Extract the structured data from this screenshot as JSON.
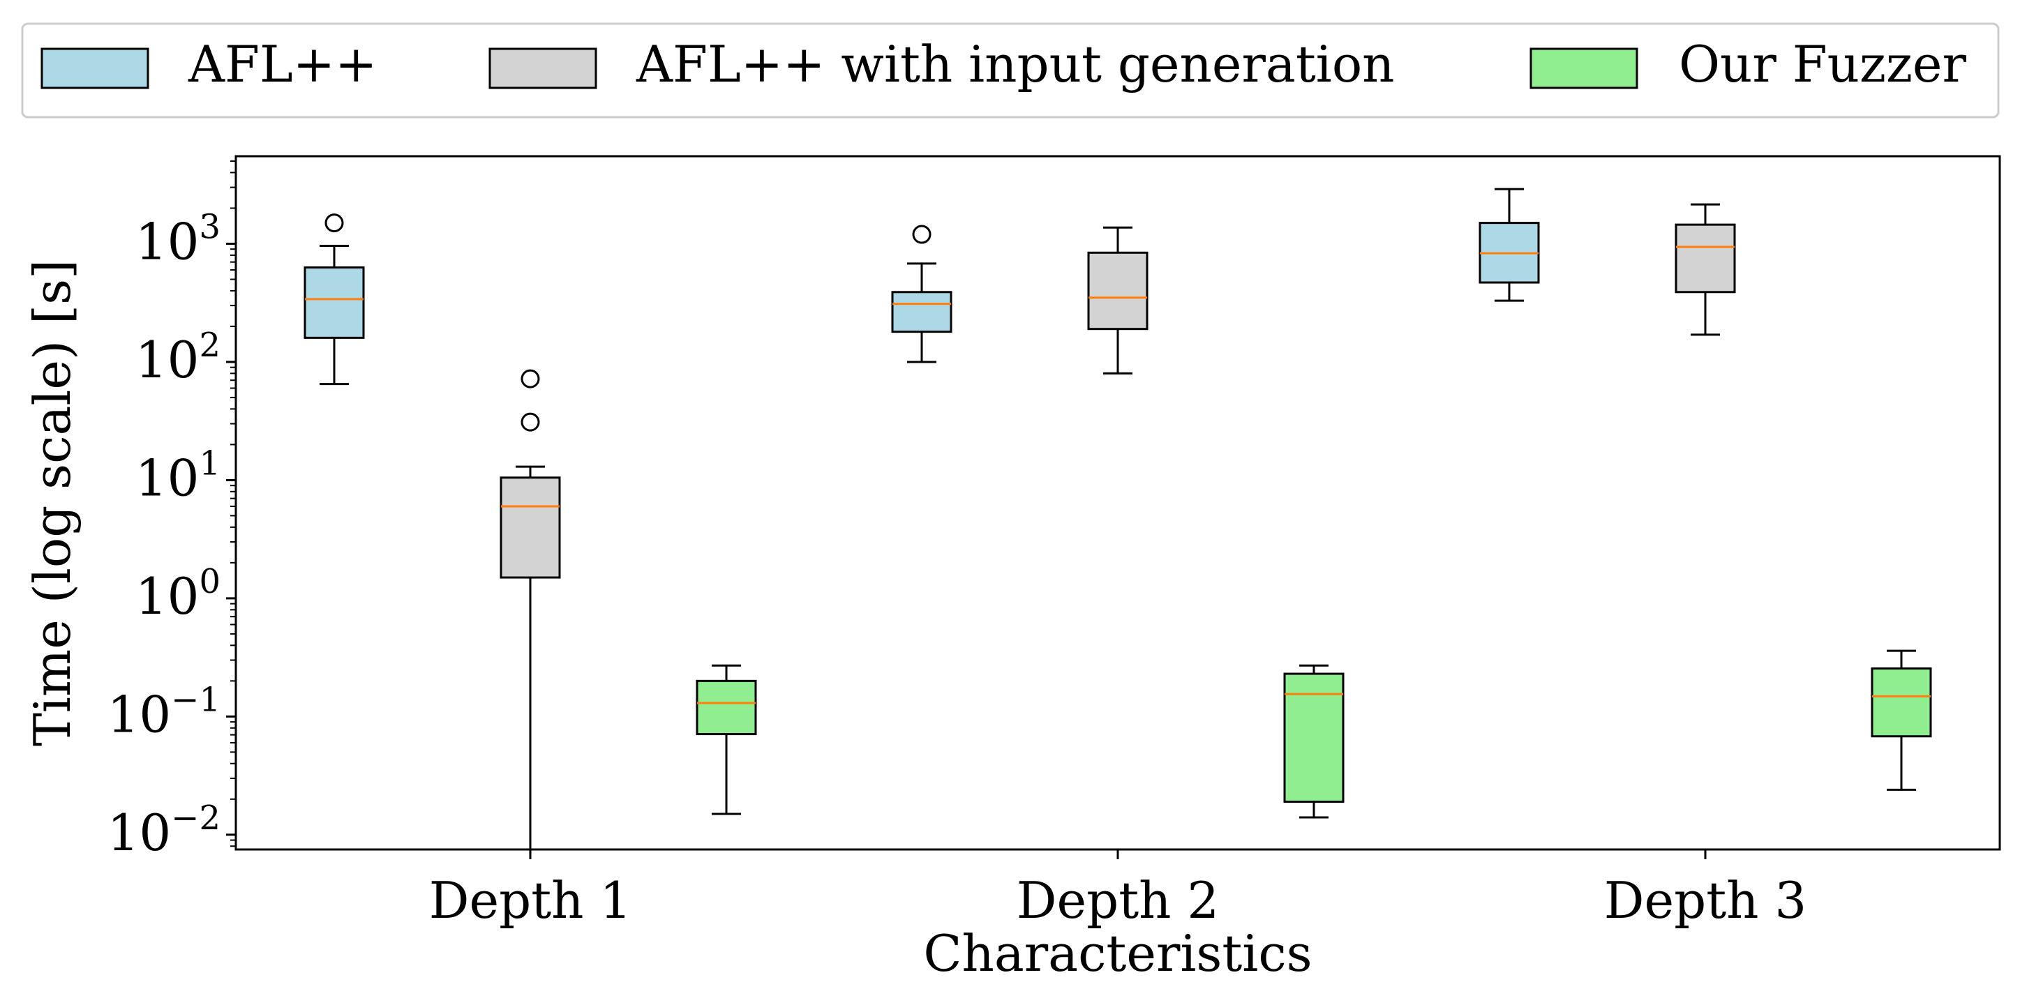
{
  "chart_data": {
    "type": "box",
    "y_scale": "log",
    "ylabel": "Time (log scale) [s]",
    "xlabel": "Characteristics",
    "categories": [
      "Depth 1",
      "Depth 2",
      "Depth 3"
    ],
    "ylim": [
      0.0075,
      5500
    ],
    "y_ticks": [
      {
        "value": 0.01,
        "base": "10",
        "exp": "−2"
      },
      {
        "value": 0.1,
        "base": "10",
        "exp": "−1"
      },
      {
        "value": 1,
        "base": "10",
        "exp": "0"
      },
      {
        "value": 10,
        "base": "10",
        "exp": "1"
      },
      {
        "value": 100,
        "base": "10",
        "exp": "2"
      },
      {
        "value": 1000,
        "base": "10",
        "exp": "3"
      }
    ],
    "legend_position": "top, outside plot",
    "series": [
      {
        "name": "AFL++",
        "color": "#add8e6",
        "boxes": [
          {
            "category": "Depth 1",
            "whislo": 65,
            "q1": 160,
            "median": 340,
            "q3": 630,
            "whishi": 960,
            "fliers": [
              1500
            ]
          },
          {
            "category": "Depth 2",
            "whislo": 100,
            "q1": 180,
            "median": 310,
            "q3": 390,
            "whishi": 680,
            "fliers": [
              1200
            ]
          },
          {
            "category": "Depth 3",
            "whislo": 330,
            "q1": 470,
            "median": 830,
            "q3": 1500,
            "whishi": 2900,
            "fliers": []
          }
        ]
      },
      {
        "name": "AFL++ with input generation",
        "color": "#d3d3d3",
        "boxes": [
          {
            "category": "Depth 1",
            "whislo": 0.0075,
            "q1": 1.5,
            "median": 6.0,
            "q3": 10.5,
            "whishi": 13,
            "fliers": [
              31,
              72
            ]
          },
          {
            "category": "Depth 2",
            "whislo": 80,
            "q1": 190,
            "median": 350,
            "q3": 840,
            "whishi": 1370,
            "fliers": []
          },
          {
            "category": "Depth 3",
            "whislo": 170,
            "q1": 390,
            "median": 940,
            "q3": 1450,
            "whishi": 2150,
            "fliers": []
          }
        ]
      },
      {
        "name": "Our Fuzzer",
        "color": "#90ee90",
        "boxes": [
          {
            "category": "Depth 1",
            "whislo": 0.015,
            "q1": 0.071,
            "median": 0.13,
            "q3": 0.2,
            "whishi": 0.27,
            "fliers": []
          },
          {
            "category": "Depth 2",
            "whislo": 0.014,
            "q1": 0.019,
            "median": 0.155,
            "q3": 0.23,
            "whishi": 0.27,
            "fliers": []
          },
          {
            "category": "Depth 3",
            "whislo": 0.024,
            "q1": 0.068,
            "median": 0.148,
            "q3": 0.255,
            "whishi": 0.36,
            "fliers": []
          }
        ]
      }
    ],
    "colors": {
      "median": "#ff7f0e",
      "stroke": "#000000",
      "legend_border": "#cccccc"
    }
  }
}
